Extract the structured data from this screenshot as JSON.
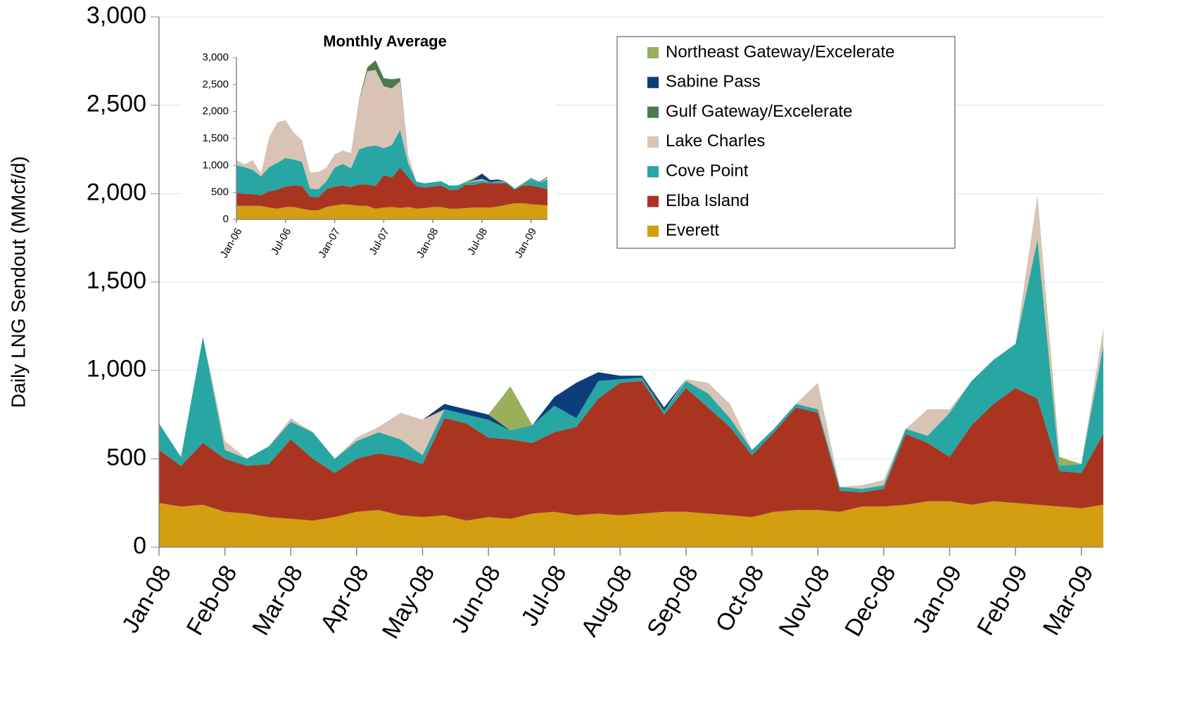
{
  "chart_data": [
    {
      "type": "area",
      "stacked": true,
      "y_label": "Daily LNG Sendout (MMcf/d)",
      "categories": [
        "Jan-08",
        null,
        null,
        "Feb-08",
        null,
        null,
        "Mar-08",
        null,
        null,
        "Apr-08",
        null,
        null,
        "May-08",
        null,
        null,
        "Jun-08",
        null,
        null,
        "Jul-08",
        null,
        null,
        "Aug-08",
        null,
        null,
        "Sep-08",
        null,
        null,
        "Oct-08",
        null,
        null,
        "Nov-08",
        null,
        null,
        "Dec-08",
        null,
        null,
        "Jan-09",
        null,
        null,
        "Feb-09",
        null,
        null,
        "Mar-09",
        null
      ],
      "ylim": [
        0,
        3000
      ],
      "yticks": [
        0,
        500,
        {
          "value": 1000,
          "label": "1,000"
        },
        {
          "value": 1500,
          "label": "1,500"
        },
        {
          "value": 2000,
          "label": "2,000"
        },
        {
          "value": 2500,
          "label": "2,500"
        },
        {
          "value": 3000,
          "label": "3,000"
        }
      ],
      "grid": true,
      "legend": "upper right",
      "series": [
        {
          "name": "Everett",
          "color": "#d39e10",
          "values": [
            250,
            230,
            240,
            200,
            190,
            170,
            160,
            150,
            170,
            200,
            210,
            180,
            170,
            180,
            150,
            170,
            160,
            190,
            200,
            180,
            190,
            180,
            190,
            200,
            200,
            190,
            180,
            170,
            200,
            210,
            210,
            200,
            230,
            230,
            240,
            260,
            260,
            240,
            260,
            250,
            240,
            230,
            220,
            240
          ]
        },
        {
          "name": "Elba Island",
          "color": "#a93521",
          "values": [
            300,
            230,
            350,
            300,
            270,
            300,
            450,
            350,
            250,
            300,
            320,
            330,
            300,
            550,
            550,
            450,
            450,
            400,
            450,
            500,
            650,
            750,
            750,
            550,
            700,
            600,
            500,
            350,
            450,
            580,
            550,
            120,
            80,
            100,
            400,
            330,
            250,
            450,
            550,
            650,
            600,
            200,
            200,
            400
          ]
        },
        {
          "name": "Cove Point",
          "color": "#27a6a4",
          "values": [
            150,
            50,
            600,
            50,
            40,
            100,
            100,
            150,
            80,
            100,
            120,
            100,
            50,
            50,
            50,
            100,
            50,
            100,
            150,
            50,
            100,
            20,
            20,
            20,
            40,
            80,
            50,
            30,
            20,
            20,
            20,
            20,
            20,
            20,
            30,
            40,
            250,
            250,
            250,
            250,
            900,
            30,
            50,
            500
          ]
        },
        {
          "name": "Lake Charles",
          "color": "#d8c3b4",
          "values": [
            0,
            0,
            0,
            50,
            0,
            0,
            20,
            0,
            0,
            20,
            30,
            150,
            200,
            0,
            0,
            0,
            0,
            0,
            0,
            0,
            0,
            0,
            0,
            0,
            10,
            60,
            80,
            0,
            0,
            0,
            150,
            0,
            20,
            30,
            0,
            150,
            20,
            0,
            0,
            0,
            250,
            0,
            0,
            100
          ]
        },
        {
          "name": "Gulf Gateway/Excelerate",
          "color": "#4a7a4e",
          "values": [
            0,
            0,
            0,
            0,
            0,
            0,
            0,
            0,
            0,
            0,
            0,
            0,
            0,
            0,
            0,
            0,
            0,
            0,
            0,
            0,
            0,
            0,
            0,
            0,
            0,
            0,
            0,
            0,
            0,
            0,
            0,
            0,
            0,
            0,
            0,
            0,
            0,
            0,
            0,
            0,
            0,
            0,
            0,
            0
          ]
        },
        {
          "name": "Sabine Pass",
          "color": "#0b3e7a",
          "values": [
            0,
            0,
            0,
            0,
            0,
            0,
            0,
            0,
            0,
            0,
            0,
            0,
            0,
            30,
            30,
            30,
            0,
            0,
            50,
            200,
            50,
            20,
            10,
            20,
            0,
            0,
            0,
            0,
            0,
            0,
            0,
            0,
            0,
            0,
            0,
            0,
            0,
            0,
            0,
            0,
            0,
            0,
            0,
            0
          ]
        },
        {
          "name": "Northeast Gateway/Excelerate",
          "color": "#9aaf5a",
          "values": [
            0,
            0,
            0,
            0,
            0,
            0,
            0,
            0,
            0,
            0,
            0,
            0,
            0,
            0,
            0,
            0,
            250,
            0,
            0,
            0,
            0,
            0,
            0,
            0,
            0,
            0,
            0,
            0,
            0,
            0,
            0,
            0,
            0,
            0,
            0,
            0,
            0,
            0,
            0,
            0,
            0,
            50,
            0,
            0
          ]
        }
      ]
    },
    {
      "type": "area",
      "stacked": true,
      "title": "Monthly Average",
      "categories": [
        "Jan-06",
        null,
        null,
        null,
        null,
        null,
        "Jul-06",
        null,
        null,
        null,
        null,
        null,
        "Jan-07",
        null,
        null,
        null,
        null,
        null,
        "Jul-07",
        null,
        null,
        null,
        null,
        null,
        "Jan-08",
        null,
        null,
        null,
        null,
        null,
        "Jul-08",
        null,
        null,
        null,
        null,
        null,
        "Jan-09",
        null,
        null
      ],
      "ylim": [
        0,
        3000
      ],
      "yticks": [
        0,
        500,
        {
          "value": 1000,
          "label": "1,000"
        },
        {
          "value": 1500,
          "label": "1,500"
        },
        {
          "value": 2000,
          "label": "2,000"
        },
        {
          "value": 2500,
          "label": "2,500"
        },
        {
          "value": 3000,
          "label": "3,000"
        }
      ],
      "series": [
        {
          "color": "#d39e10",
          "values": [
            250,
            250,
            250,
            250,
            220,
            200,
            230,
            230,
            200,
            170,
            170,
            230,
            260,
            280,
            270,
            250,
            250,
            200,
            220,
            230,
            210,
            230,
            200,
            210,
            230,
            230,
            200,
            200,
            210,
            220,
            220,
            220,
            240,
            270,
            300,
            300,
            280,
            270,
            260
          ]
        },
        {
          "color": "#a93521",
          "values": [
            250,
            220,
            220,
            200,
            300,
            350,
            380,
            400,
            420,
            250,
            240,
            330,
            350,
            350,
            330,
            400,
            400,
            420,
            600,
            550,
            750,
            550,
            420,
            380,
            380,
            400,
            350,
            350,
            430,
            420,
            460,
            450,
            430,
            400,
            250,
            330,
            350,
            330,
            300
          ]
        },
        {
          "color": "#27a6a4",
          "values": [
            500,
            500,
            450,
            350,
            450,
            500,
            530,
            480,
            450,
            150,
            150,
            150,
            350,
            400,
            350,
            650,
            700,
            750,
            500,
            600,
            700,
            250,
            80,
            80,
            80,
            80,
            80,
            80,
            40,
            60,
            40,
            20,
            30,
            20,
            20,
            30,
            130,
            80,
            180
          ]
        },
        {
          "color": "#d8c3b4",
          "values": [
            100,
            50,
            180,
            50,
            550,
            750,
            700,
            500,
            400,
            300,
            320,
            250,
            250,
            250,
            280,
            900,
            1400,
            1400,
            1150,
            1050,
            900,
            150,
            0,
            0,
            0,
            0,
            0,
            0,
            0,
            20,
            30,
            0,
            10,
            10,
            0,
            20,
            20,
            0,
            40
          ]
        },
        {
          "color": "#4a7a4e",
          "values": [
            0,
            0,
            0,
            0,
            0,
            0,
            0,
            0,
            0,
            0,
            0,
            0,
            0,
            0,
            0,
            20,
            70,
            180,
            150,
            170,
            60,
            0,
            0,
            0,
            0,
            0,
            0,
            0,
            0,
            0,
            0,
            0,
            0,
            0,
            0,
            0,
            0,
            0,
            0
          ]
        },
        {
          "color": "#0b3e7a",
          "values": [
            0,
            0,
            0,
            0,
            0,
            0,
            0,
            0,
            0,
            0,
            0,
            0,
            0,
            0,
            0,
            0,
            0,
            0,
            0,
            0,
            0,
            0,
            0,
            0,
            0,
            0,
            0,
            0,
            0,
            20,
            100,
            40,
            30,
            0,
            0,
            0,
            0,
            10,
            10
          ]
        },
        {
          "color": "#9aaf5a",
          "values": [
            0,
            0,
            0,
            0,
            0,
            0,
            0,
            0,
            0,
            0,
            0,
            0,
            0,
            0,
            0,
            0,
            0,
            0,
            0,
            0,
            0,
            0,
            0,
            0,
            0,
            0,
            0,
            0,
            20,
            30,
            0,
            0,
            0,
            0,
            0,
            0,
            0,
            10,
            0
          ]
        }
      ]
    }
  ]
}
